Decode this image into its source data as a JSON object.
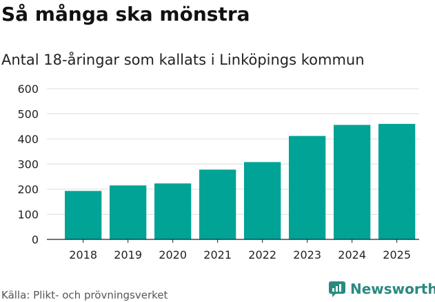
{
  "header": {
    "title": "Så många ska mönstra",
    "subtitle": "Antal 18-åringar som kallats i Linköpings kommun"
  },
  "footer": {
    "source": "Källa: Plikt- och prövningsverket",
    "brand": "Newsworthy"
  },
  "colors": {
    "bar": "#00a396",
    "grid": "#dddddd",
    "axis": "#222222",
    "brand": "#2a8a7f"
  },
  "chart_data": {
    "type": "bar",
    "title": "Så många ska mönstra",
    "subtitle": "Antal 18-åringar som kallats i Linköpings kommun",
    "xlabel": "",
    "ylabel": "",
    "categories": [
      "2018",
      "2019",
      "2020",
      "2021",
      "2022",
      "2023",
      "2024",
      "2025"
    ],
    "values": [
      193,
      215,
      223,
      278,
      308,
      412,
      456,
      460
    ],
    "ylim": [
      0,
      600
    ],
    "yticks": [
      0,
      100,
      200,
      300,
      400,
      500,
      600
    ],
    "grid": true
  }
}
